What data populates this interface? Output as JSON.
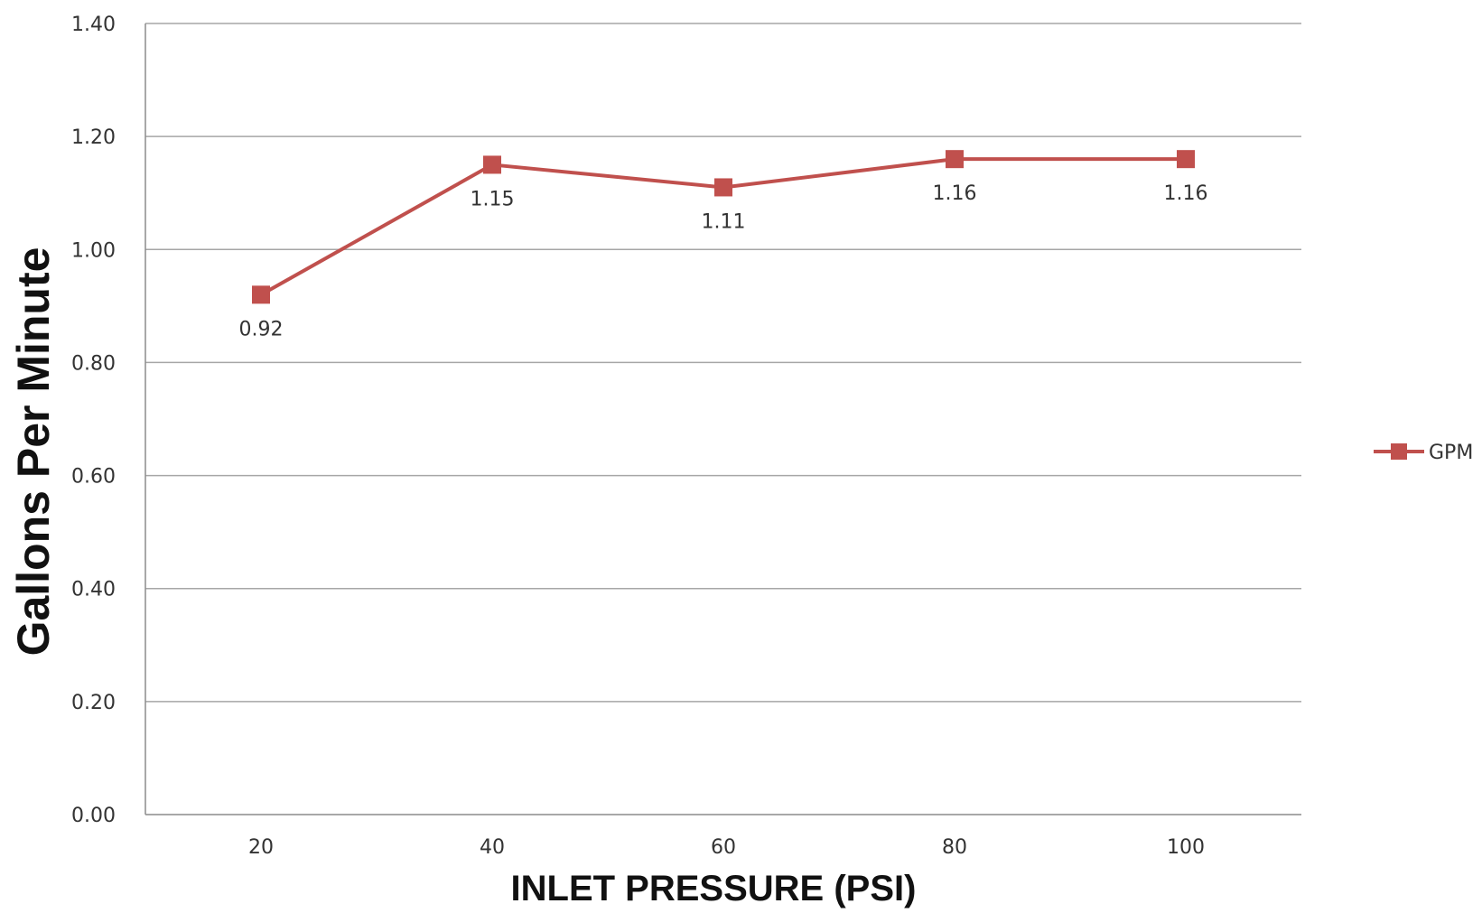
{
  "chart_data": {
    "type": "line",
    "categories": [
      "20",
      "40",
      "60",
      "80",
      "100"
    ],
    "series": [
      {
        "name": "GPM",
        "values": [
          0.92,
          1.15,
          1.11,
          1.16,
          1.16
        ],
        "color": "#c0504d"
      }
    ],
    "data_labels": [
      "0.92",
      "1.15",
      "1.11",
      "1.16",
      "1.16"
    ],
    "y_ticks": [
      "0.00",
      "0.20",
      "0.40",
      "0.60",
      "0.80",
      "1.00",
      "1.20",
      "1.40"
    ],
    "xlabel": "INLET PRESSURE (PSI)",
    "ylabel": "Gallons Per Minute",
    "ylim": [
      0,
      1.4
    ],
    "grid": true,
    "legend_position": "right"
  }
}
